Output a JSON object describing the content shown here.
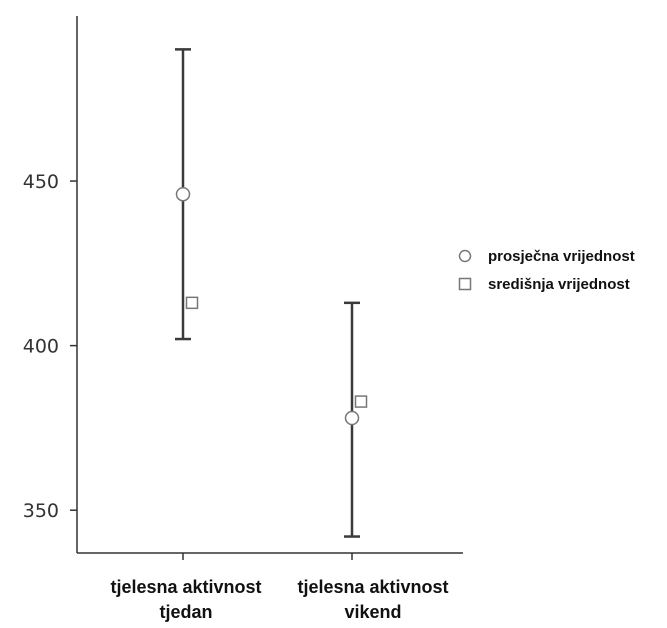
{
  "chart_data": {
    "type": "scatter",
    "title": "",
    "xlabel": "",
    "ylabel": "",
    "ylim": [
      337,
      505
    ],
    "y_ticks": [
      350,
      400,
      450
    ],
    "categories": [
      [
        "tjelesna aktivnost",
        "tjedan"
      ],
      [
        "tjelesna aktivnost",
        "vikend"
      ]
    ],
    "series": [
      {
        "name": "prosječna vrijednost",
        "marker": "circle",
        "values": [
          446,
          378
        ]
      },
      {
        "name": "središnja vrijednost",
        "marker": "square",
        "values": [
          413,
          383
        ]
      }
    ],
    "error_bars": [
      {
        "low": 402,
        "high": 490
      },
      {
        "low": 342,
        "high": 413
      }
    ],
    "legend_position": "right",
    "grid": false,
    "colors": {
      "axis": "#333333",
      "errorbar": "#3a3a3a",
      "marker_stroke": "#777777",
      "marker_fill": "#ffffff"
    }
  }
}
